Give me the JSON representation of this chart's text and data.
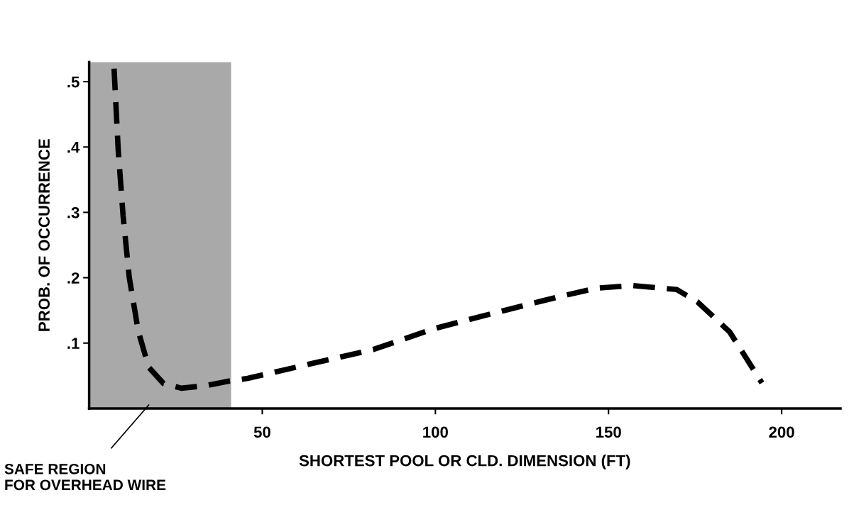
{
  "chart_data": {
    "type": "line",
    "xlabel": "SHORTEST POOL OR CLD. DIMENSION (FT)",
    "ylabel": "PROB. OF OCCURRENCE",
    "xlim": [
      0,
      217
    ],
    "ylim": [
      0,
      0.53
    ],
    "xticks": [
      50,
      100,
      150,
      200
    ],
    "yticks": [
      {
        "value": 0.1,
        "label": ".1"
      },
      {
        "value": 0.2,
        "label": ".2"
      },
      {
        "value": 0.3,
        "label": ".3"
      },
      {
        "value": 0.4,
        "label": ".4"
      },
      {
        "value": 0.5,
        "label": ".5"
      }
    ],
    "grid": false,
    "line_style": "dashed",
    "marker": "none",
    "bands": [
      {
        "axis": "x",
        "from": 0,
        "to": 41,
        "label": "SAFE REGION\nFOR OVERHEAD WIRE",
        "color": "#a9a9a9"
      }
    ],
    "series": [
      {
        "color": "#000000",
        "x": [
          7.2,
          8.4,
          9.8,
          11.6,
          14.2,
          17.2,
          21.5,
          26.6,
          34,
          40.5,
          45.8,
          64.6,
          82,
          99.6,
          117,
          135,
          146.4,
          156.8,
          169.7,
          175.7,
          185,
          194.3
        ],
        "values": [
          0.52,
          0.395,
          0.295,
          0.2,
          0.118,
          0.063,
          0.038,
          0.031,
          0.035,
          0.042,
          0.046,
          0.069,
          0.09,
          0.122,
          0.146,
          0.17,
          0.184,
          0.188,
          0.182,
          0.163,
          0.117,
          0.039
        ]
      }
    ]
  }
}
